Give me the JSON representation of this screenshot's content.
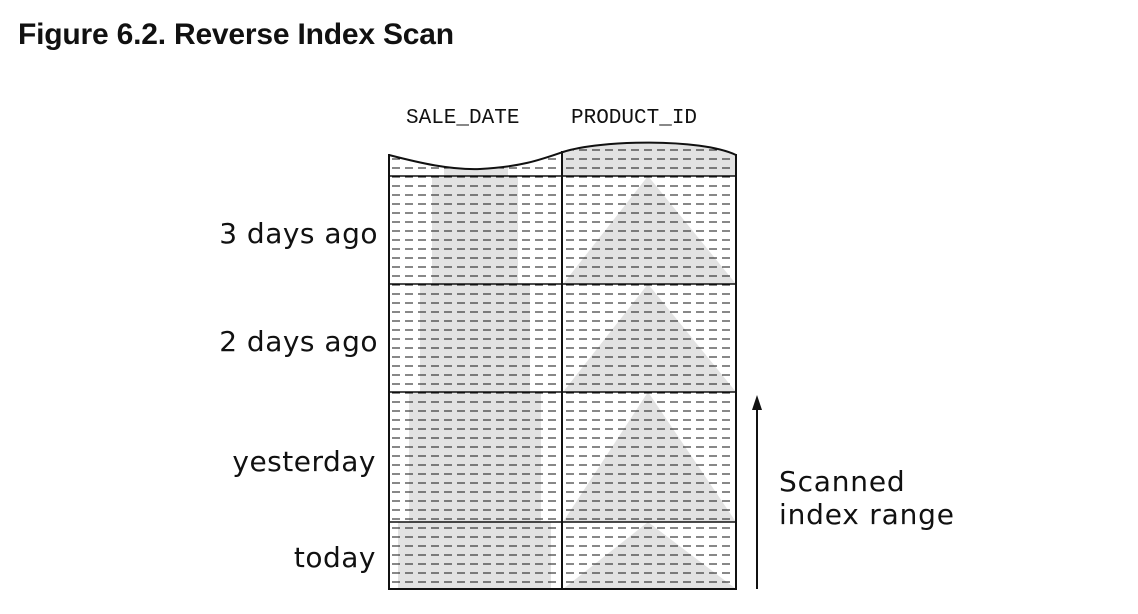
{
  "figure": {
    "title": "Figure 6.2. Reverse Index Scan"
  },
  "columns": {
    "col1": "SALE_DATE",
    "col2": "PRODUCT_ID"
  },
  "row_labels": [
    "3 days ago",
    "2 days ago",
    "yesterday",
    "today"
  ],
  "scan_note": {
    "line1": "Scanned",
    "line2": "index range"
  },
  "colors": {
    "shade": "#e2e2e2",
    "line": "#111111"
  }
}
